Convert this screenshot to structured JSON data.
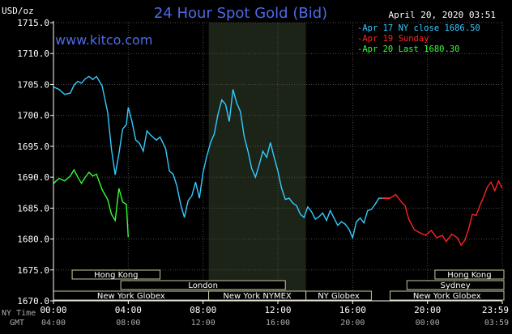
{
  "chart_data": {
    "type": "line",
    "title": "24 Hour Spot Gold (Bid)",
    "brand": "www.kitco.com",
    "date_label": "April 20, 2020 03:51",
    "ylabel": "USD/oz",
    "ylim": [
      1670,
      1715
    ],
    "y_ticks": [
      "1715.0",
      "1710.0",
      "1705.0",
      "1700.0",
      "1695.0",
      "1690.0",
      "1685.0",
      "1680.0",
      "1675.0",
      "1670.0"
    ],
    "y_tick_values": [
      1715,
      1710,
      1705,
      1700,
      1695,
      1690,
      1685,
      1680,
      1675,
      1670
    ],
    "x_row1_title": "NY Time",
    "x_row2_title": "GMT",
    "x_ticks_ny": [
      "00:00",
      "04:00",
      "08:00",
      "12:00",
      "16:00",
      "20:00",
      "23:59"
    ],
    "x_ticks_gmt": [
      "04:00",
      "08:00",
      "12:00",
      "16:00",
      "20:00",
      "00:00",
      "03:59"
    ],
    "x_tick_hours": [
      0,
      4,
      8,
      12,
      16,
      20,
      24
    ],
    "xlim": [
      0,
      24
    ],
    "grid": true,
    "shaded_range_hours": [
      8.3,
      13.5
    ],
    "legend": [
      {
        "label": "Apr 17 NY close 1686.50",
        "color": "#33ccff"
      },
      {
        "label": "Apr 19 Sunday",
        "color": "#ff2222"
      },
      {
        "label": "Apr 20 Last 1680.30",
        "color": "#33ff33"
      }
    ],
    "sessions": [
      {
        "name": "Hong Kong",
        "start": 1.0,
        "end": 5.7,
        "row": 0
      },
      {
        "name": "London",
        "start": 3.6,
        "end": 12.4,
        "row": 1
      },
      {
        "name": "New York Globex",
        "start": 0.0,
        "end": 8.3,
        "row": 2
      },
      {
        "name": "New York NYMEX",
        "start": 8.3,
        "end": 13.5,
        "row": 2
      },
      {
        "name": "NY Globex",
        "start": 13.5,
        "end": 17.0,
        "row": 2
      },
      {
        "name": "Hong Kong",
        "start": 20.4,
        "end": 25.0,
        "row": 0
      },
      {
        "name": "Sydney",
        "start": 18.9,
        "end": 25.0,
        "row": 1
      },
      {
        "name": "New York Globex",
        "start": 18.0,
        "end": 25.0,
        "row": 2
      }
    ],
    "series": [
      {
        "name": "Apr 17 NY close 1686.50",
        "color": "#33ccff",
        "x": [
          0.0,
          0.3,
          0.6,
          0.9,
          1.1,
          1.3,
          1.5,
          1.7,
          1.9,
          2.1,
          2.3,
          2.6,
          2.9,
          3.1,
          3.3,
          3.5,
          3.7,
          3.9,
          4.0,
          4.2,
          4.4,
          4.6,
          4.8,
          5.0,
          5.2,
          5.5,
          5.7,
          6.0,
          6.2,
          6.4,
          6.6,
          6.8,
          7.0,
          7.2,
          7.4,
          7.6,
          7.8,
          8.0,
          8.2,
          8.4,
          8.6,
          8.8,
          9.0,
          9.2,
          9.4,
          9.6,
          9.8,
          10.0,
          10.2,
          10.4,
          10.6,
          10.8,
          11.0,
          11.2,
          11.4,
          11.6,
          11.8,
          12.0,
          12.2,
          12.4,
          12.6,
          12.8,
          13.0,
          13.2,
          13.4,
          13.6,
          13.8,
          14.0,
          14.2,
          14.4,
          14.6,
          14.8,
          15.0,
          15.2,
          15.4,
          15.6,
          15.8,
          16.0,
          16.2,
          16.4,
          16.6,
          16.8,
          17.0,
          17.2,
          17.4,
          17.6
        ],
        "y": [
          1704.6,
          1704.2,
          1703.4,
          1703.6,
          1704.9,
          1705.5,
          1705.2,
          1705.9,
          1706.3,
          1705.8,
          1706.3,
          1704.8,
          1700.5,
          1694.5,
          1690.4,
          1693.8,
          1697.8,
          1698.5,
          1701.3,
          1699.0,
          1696.0,
          1695.5,
          1694.2,
          1697.5,
          1696.8,
          1696.0,
          1696.5,
          1694.6,
          1691.0,
          1690.5,
          1688.6,
          1685.6,
          1683.5,
          1686.2,
          1687.0,
          1689.2,
          1686.6,
          1690.8,
          1693.4,
          1695.6,
          1697.0,
          1700.2,
          1702.5,
          1701.8,
          1699.0,
          1704.2,
          1702.0,
          1700.6,
          1696.6,
          1694.2,
          1691.4,
          1690.0,
          1692.0,
          1694.2,
          1693.2,
          1695.6,
          1693.2,
          1691.0,
          1688.2,
          1686.4,
          1686.6,
          1685.8,
          1685.4,
          1684.0,
          1683.5,
          1685.2,
          1684.4,
          1683.2,
          1683.6,
          1684.2,
          1683.0,
          1684.6,
          1683.4,
          1682.2,
          1682.8,
          1682.4,
          1681.6,
          1680.2,
          1682.8,
          1683.4,
          1682.6,
          1684.6,
          1684.8,
          1685.6,
          1686.6,
          1686.6
        ]
      },
      {
        "name": "Apr 19 Sunday",
        "color": "#ff2222",
        "x": [
          18.0,
          18.3,
          18.6,
          18.8,
          19.0,
          19.3,
          19.6,
          19.9,
          20.2,
          20.5,
          20.8,
          21.0,
          21.3,
          21.6,
          21.8,
          22.0,
          22.2,
          22.4,
          22.6,
          22.8,
          23.0,
          23.2,
          23.4,
          23.6,
          23.8,
          24.0
        ],
        "y": [
          1686.6,
          1687.2,
          1686.0,
          1685.4,
          1683.2,
          1681.5,
          1681.0,
          1680.6,
          1681.4,
          1680.2,
          1680.6,
          1679.6,
          1680.8,
          1680.2,
          1679.0,
          1679.8,
          1681.6,
          1684.0,
          1683.8,
          1685.4,
          1686.8,
          1688.4,
          1689.2,
          1687.8,
          1689.4,
          1688.2
        ]
      },
      {
        "name": "Apr 20 Last 1680.30",
        "color": "#33ff33",
        "x": [
          0.0,
          0.3,
          0.6,
          0.9,
          1.1,
          1.3,
          1.5,
          1.7,
          1.9,
          2.1,
          2.3,
          2.6,
          2.9,
          3.1,
          3.3,
          3.5,
          3.7,
          3.9,
          4.0
        ],
        "y": [
          1689.0,
          1689.8,
          1689.4,
          1690.2,
          1691.2,
          1690.0,
          1689.0,
          1690.0,
          1690.8,
          1690.2,
          1690.5,
          1688.0,
          1686.4,
          1684.0,
          1683.0,
          1688.2,
          1686.0,
          1685.6,
          1680.3
        ]
      }
    ]
  }
}
